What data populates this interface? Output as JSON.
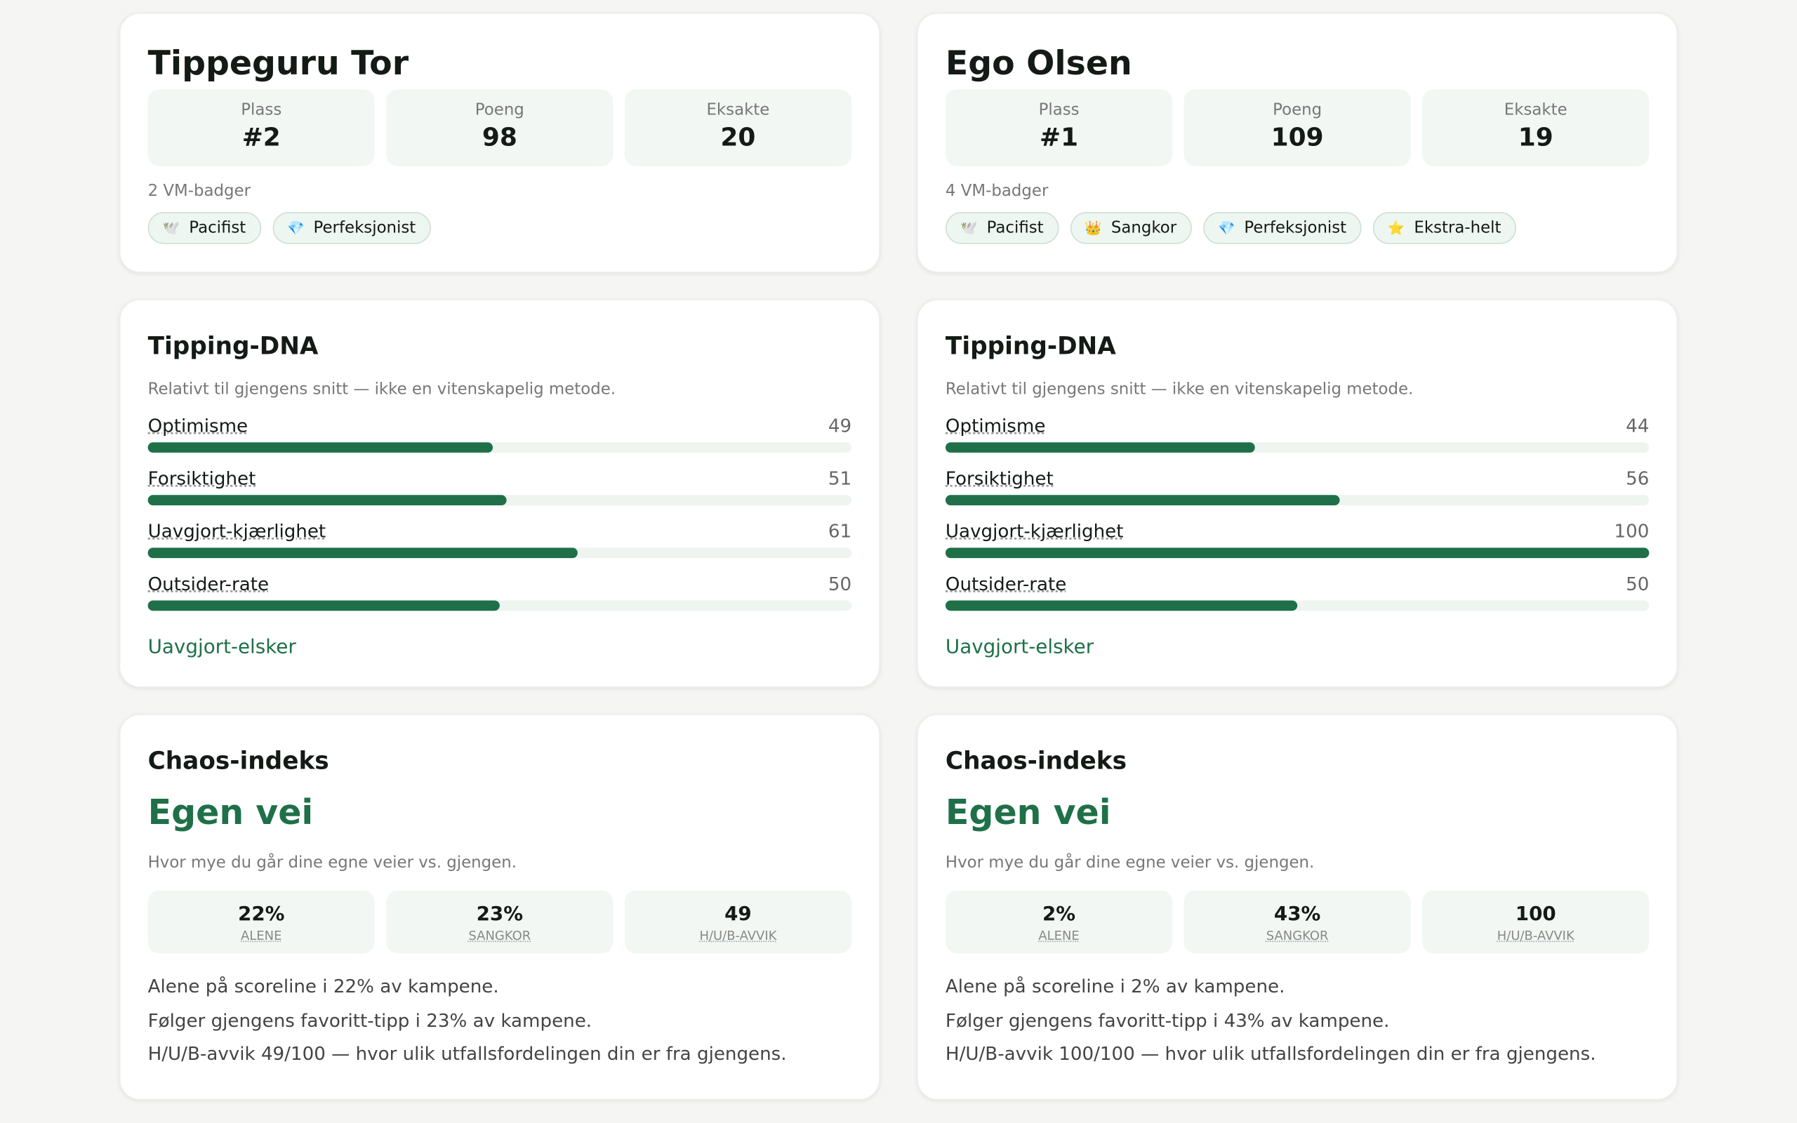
{
  "players": [
    {
      "name": "Tippeguru Tor",
      "stats": [
        {
          "label": "Plass",
          "value": "#2"
        },
        {
          "label": "Poeng",
          "value": "98"
        },
        {
          "label": "Eksakte",
          "value": "20"
        }
      ],
      "badge_count": "2 VM-badger",
      "badges": [
        {
          "icon": "🕊️",
          "label": "Pacifist"
        },
        {
          "icon": "💎",
          "label": "Perfeksjonist"
        }
      ],
      "dna": {
        "title": "Tipping-DNA",
        "subtitle": "Relativt til gjengens snitt — ikke en vitenskapelig metode.",
        "range": [
          0,
          100
        ],
        "traits": [
          {
            "label": "Optimisme",
            "value": 49
          },
          {
            "label": "Forsiktighet",
            "value": 51
          },
          {
            "label": "Uavgjort-kjærlighet",
            "value": 61
          },
          {
            "label": "Outsider-rate",
            "value": 50
          }
        ],
        "verdict": "Uavgjort-elsker"
      },
      "chaos": {
        "title": "Chaos-indeks",
        "headline": "Egen vei",
        "subtitle": "Hvor mye du går dine egne veier vs. gjengen.",
        "stats": [
          {
            "value": "22%",
            "label": "ALENE"
          },
          {
            "value": "23%",
            "label": "SANGKOR"
          },
          {
            "value": "49",
            "label": "H/U/B-AVVIK"
          }
        ],
        "notes": [
          "Alene på scoreline i 22% av kampene.",
          "Følger gjengens favoritt-tipp i 23% av kampene.",
          "H/U/B-avvik 49/100 — hvor ulik utfallsfordelingen din er fra gjengens."
        ]
      }
    },
    {
      "name": "Ego Olsen",
      "stats": [
        {
          "label": "Plass",
          "value": "#1"
        },
        {
          "label": "Poeng",
          "value": "109"
        },
        {
          "label": "Eksakte",
          "value": "19"
        }
      ],
      "badge_count": "4 VM-badger",
      "badges": [
        {
          "icon": "🕊️",
          "label": "Pacifist"
        },
        {
          "icon": "👑",
          "label": "Sangkor"
        },
        {
          "icon": "💎",
          "label": "Perfeksjonist"
        },
        {
          "icon": "⭐",
          "label": "Ekstra-helt"
        }
      ],
      "dna": {
        "title": "Tipping-DNA",
        "subtitle": "Relativt til gjengens snitt — ikke en vitenskapelig metode.",
        "range": [
          0,
          100
        ],
        "traits": [
          {
            "label": "Optimisme",
            "value": 44
          },
          {
            "label": "Forsiktighet",
            "value": 56
          },
          {
            "label": "Uavgjort-kjærlighet",
            "value": 100
          },
          {
            "label": "Outsider-rate",
            "value": 50
          }
        ],
        "verdict": "Uavgjort-elsker"
      },
      "chaos": {
        "title": "Chaos-indeks",
        "headline": "Egen vei",
        "subtitle": "Hvor mye du går dine egne veier vs. gjengen.",
        "stats": [
          {
            "value": "2%",
            "label": "ALENE"
          },
          {
            "value": "43%",
            "label": "SANGKOR"
          },
          {
            "value": "100",
            "label": "H/U/B-AVVIK"
          }
        ],
        "notes": [
          "Alene på scoreline i 2% av kampene.",
          "Følger gjengens favoritt-tipp i 43% av kampene.",
          "H/U/B-avvik 100/100 — hvor ulik utfallsfordelingen din er fra gjengens."
        ]
      }
    }
  ]
}
